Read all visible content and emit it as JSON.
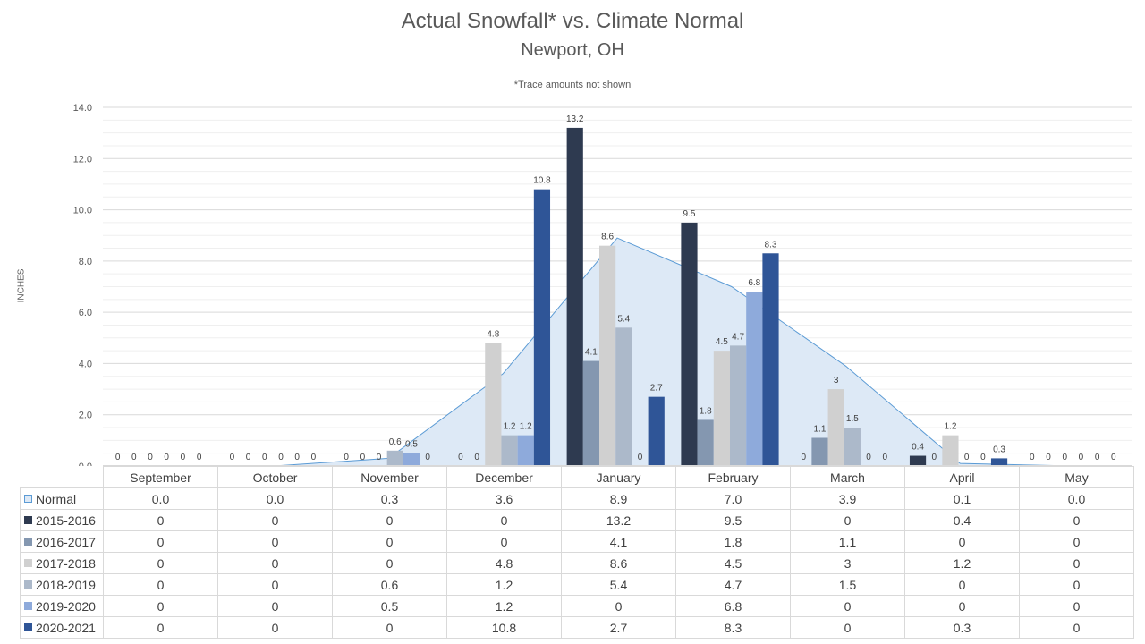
{
  "chart_data": {
    "type": "bar",
    "title": "Actual Snowfall* vs. Climate Normal",
    "subtitle": "Newport, OH",
    "note": "*Trace amounts not shown",
    "ylabel": "INCHES",
    "ylim": [
      0,
      14
    ],
    "y_ticks": [
      "0.0",
      "2.0",
      "4.0",
      "6.0",
      "8.0",
      "10.0",
      "12.0",
      "14.0"
    ],
    "grid": true,
    "categories": [
      "September",
      "October",
      "November",
      "December",
      "January",
      "February",
      "March",
      "April",
      "May"
    ],
    "area_series": {
      "name": "Normal",
      "values": [
        0.0,
        0.0,
        0.3,
        3.6,
        8.9,
        7.0,
        3.9,
        0.1,
        0.0
      ],
      "labels": [
        "0.0",
        "0.0",
        "0.3",
        "3.6",
        "8.9",
        "7.0",
        "3.9",
        "0.1",
        "0.0"
      ],
      "fill": "#dde9f6",
      "line": "#5b9bd5"
    },
    "series": [
      {
        "name": "2015-2016",
        "color": "#2e3a50",
        "values": [
          0,
          0,
          0,
          0,
          13.2,
          9.5,
          0,
          0.4,
          0
        ],
        "labels": [
          "0",
          "0",
          "0",
          "0",
          "13.2",
          "9.5",
          "0",
          "0.4",
          "0"
        ]
      },
      {
        "name": "2016-2017",
        "color": "#8497b0",
        "values": [
          0,
          0,
          0,
          0,
          4.1,
          1.8,
          1.1,
          0,
          0
        ],
        "labels": [
          "0",
          "0",
          "0",
          "0",
          "4.1",
          "1.8",
          "1.1",
          "0",
          "0"
        ]
      },
      {
        "name": "2017-2018",
        "color": "#d0d0d0",
        "values": [
          0,
          0,
          0,
          4.8,
          8.6,
          4.5,
          3,
          1.2,
          0
        ],
        "labels": [
          "0",
          "0",
          "0",
          "4.8",
          "8.6",
          "4.5",
          "3",
          "1.2",
          "0"
        ]
      },
      {
        "name": "2018-2019",
        "color": "#acb9ca",
        "values": [
          0,
          0,
          0.6,
          1.2,
          5.4,
          4.7,
          1.5,
          0,
          0
        ],
        "labels": [
          "0",
          "0",
          "0.6",
          "1.2",
          "5.4",
          "4.7",
          "1.5",
          "0",
          "0"
        ]
      },
      {
        "name": "2019-2020",
        "color": "#8eaadb",
        "values": [
          0,
          0,
          0.5,
          1.2,
          0,
          6.8,
          0,
          0,
          0
        ],
        "labels": [
          "0",
          "0",
          "0.5",
          "1.2",
          "0",
          "6.8",
          "0",
          "0",
          "0"
        ]
      },
      {
        "name": "2020-2021",
        "color": "#2f5597",
        "values": [
          0,
          0,
          0,
          10.8,
          2.7,
          8.3,
          0,
          0.3,
          0
        ],
        "labels": [
          "0",
          "0",
          "0",
          "10.8",
          "2.7",
          "8.3",
          "0",
          "0.3",
          "0"
        ]
      }
    ]
  }
}
